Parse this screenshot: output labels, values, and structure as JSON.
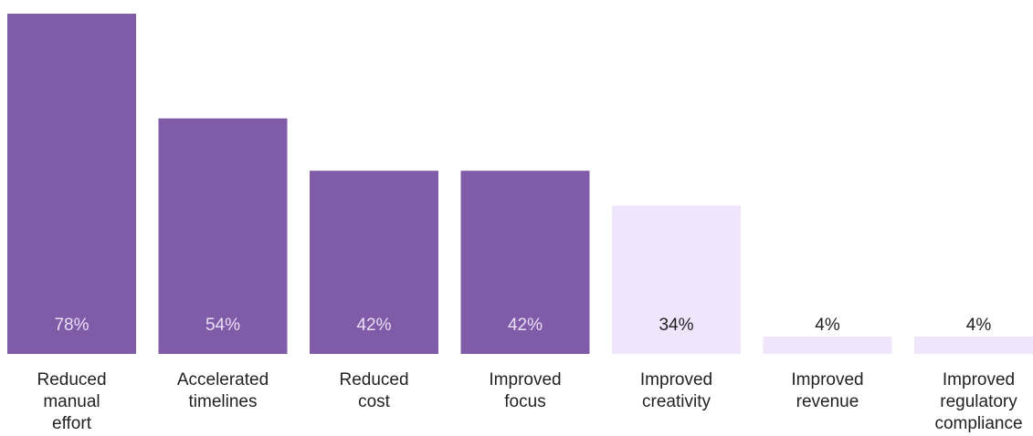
{
  "chart_data": {
    "type": "bar",
    "title": "",
    "xlabel": "",
    "ylabel": "",
    "ylim": [
      0,
      78
    ],
    "grid": false,
    "categories": [
      [
        "Reduced",
        "manual",
        "effort"
      ],
      [
        "Accelerated",
        "timelines"
      ],
      [
        "Reduced",
        "cost"
      ],
      [
        "Improved",
        "focus"
      ],
      [
        "Improved",
        "creativity"
      ],
      [
        "Improved",
        "revenue"
      ],
      [
        "Improved",
        "regulatory",
        "compliance"
      ]
    ],
    "values": [
      78,
      54,
      42,
      42,
      34,
      4,
      4
    ],
    "value_labels": [
      "78%",
      "54%",
      "42%",
      "42%",
      "34%",
      "4%",
      "4%"
    ],
    "colors": {
      "primary_bar": "#805ca8",
      "secondary_bar": "#efe6fb",
      "primary_text": "#e9def6",
      "secondary_text": "#222222"
    },
    "bar_styles": [
      "primary",
      "primary",
      "primary",
      "primary",
      "secondary",
      "secondary",
      "secondary"
    ]
  }
}
